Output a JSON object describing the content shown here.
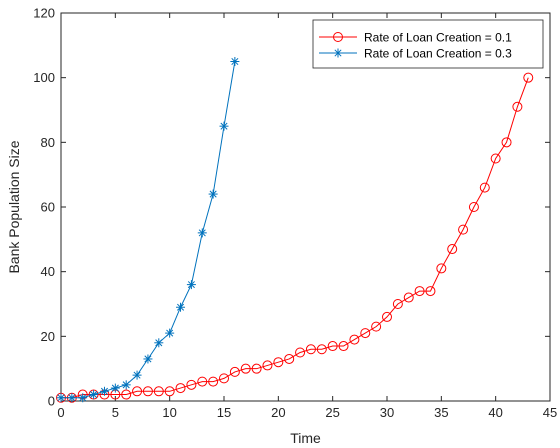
{
  "chart_data": {
    "type": "line",
    "title": "",
    "xlabel": "Time",
    "ylabel": "Bank Population Size",
    "xlim": [
      0,
      45
    ],
    "ylim": [
      0,
      120
    ],
    "xticks": [
      0,
      5,
      10,
      15,
      20,
      25,
      30,
      35,
      40,
      45
    ],
    "yticks": [
      0,
      20,
      40,
      60,
      80,
      100,
      120
    ],
    "grid": false,
    "legend_position": "top-right",
    "series": [
      {
        "name": "Rate of Loan Creation = 0.1",
        "color": "#ff0000",
        "marker": "circle",
        "x": [
          0,
          1,
          2,
          3,
          4,
          5,
          6,
          7,
          8,
          9,
          10,
          11,
          12,
          13,
          14,
          15,
          16,
          17,
          18,
          19,
          20,
          21,
          22,
          23,
          24,
          25,
          26,
          27,
          28,
          29,
          30,
          31,
          32,
          33,
          34,
          35,
          36,
          37,
          38,
          39,
          40,
          41,
          42,
          43
        ],
        "values": [
          1,
          1,
          2,
          2,
          2,
          2,
          2,
          3,
          3,
          3,
          3,
          4,
          5,
          6,
          6,
          7,
          9,
          10,
          10,
          11,
          12,
          13,
          15,
          16,
          16,
          17,
          17,
          19,
          21,
          23,
          26,
          30,
          32,
          34,
          34,
          41,
          47,
          53,
          60,
          66,
          75,
          80,
          91,
          100
        ]
      },
      {
        "name": "Rate of Loan Creation = 0.3",
        "color": "#0072bd",
        "marker": "asterisk",
        "x": [
          0,
          1,
          2,
          3,
          4,
          5,
          6,
          7,
          8,
          9,
          10,
          11,
          12,
          13,
          14,
          15,
          16
        ],
        "values": [
          1,
          1,
          1,
          2,
          3,
          4,
          5,
          8,
          13,
          18,
          21,
          29,
          36,
          52,
          64,
          85,
          105
        ]
      }
    ]
  }
}
